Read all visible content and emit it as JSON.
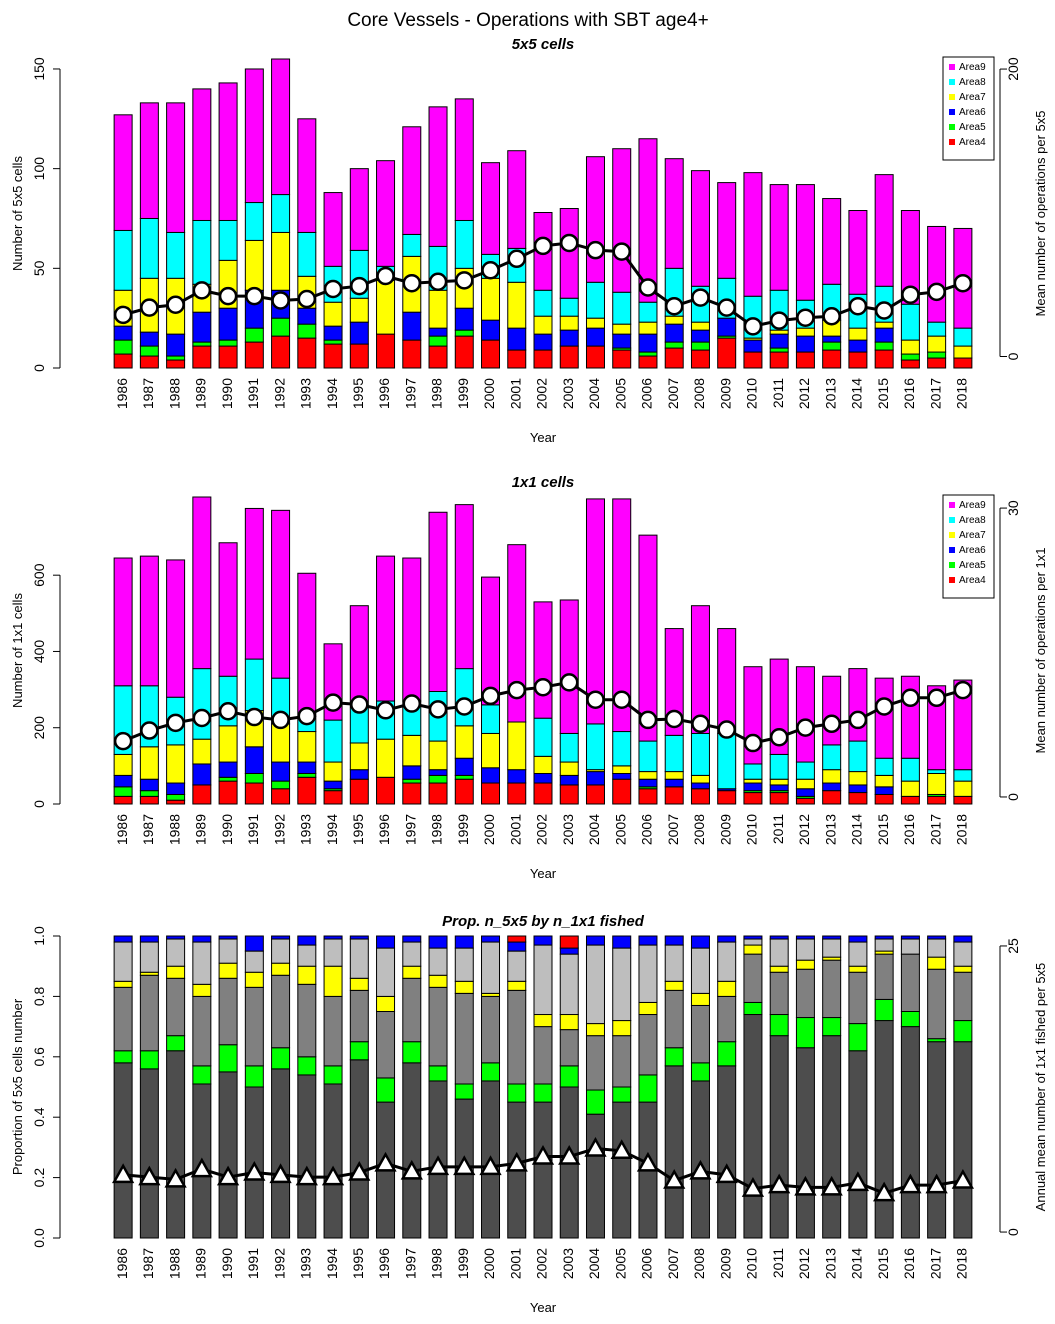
{
  "title": "Core Vessels - Operations with SBT age4+",
  "chart_data": [
    {
      "type": "bar",
      "stacked": true,
      "title": "5x5 cells",
      "xlabel": "Year",
      "ylabel": "Number of 5x5 cells",
      "y2label": "Mean number of operations per 5x5",
      "categories": [
        "1986",
        "1987",
        "1988",
        "1989",
        "1990",
        "1991",
        "1992",
        "1993",
        "1994",
        "1995",
        "1996",
        "1997",
        "1998",
        "1999",
        "2000",
        "2001",
        "2002",
        "2003",
        "2004",
        "2005",
        "2006",
        "2007",
        "2008",
        "2009",
        "2010",
        "2011",
        "2012",
        "2013",
        "2014",
        "2015",
        "2016",
        "2017",
        "2018"
      ],
      "ylim": [
        0,
        155
      ],
      "yticks": [
        0,
        50,
        100,
        150
      ],
      "y2lim": [
        -8,
        207
      ],
      "y2ticks": [
        0,
        200
      ],
      "legend": "top-right",
      "series": [
        {
          "name": "Area4",
          "color": "#ff0000",
          "values": [
            7,
            6,
            4,
            11,
            11,
            13,
            16,
            15,
            12,
            12,
            17,
            14,
            11,
            16,
            14,
            9,
            9,
            11,
            11,
            9,
            6,
            10,
            9,
            15,
            8,
            8,
            8,
            9,
            8,
            9,
            4,
            5,
            5
          ]
        },
        {
          "name": "Area5",
          "color": "#00ff00",
          "values": [
            7,
            5,
            2,
            2,
            3,
            7,
            9,
            7,
            2,
            0,
            0,
            0,
            5,
            3,
            0,
            0,
            0,
            0,
            0,
            1,
            2,
            3,
            4,
            1,
            0,
            2,
            0,
            4,
            0,
            4,
            3,
            3,
            0
          ]
        },
        {
          "name": "Area6",
          "color": "#0000ff",
          "values": [
            7,
            7,
            11,
            15,
            16,
            19,
            14,
            8,
            7,
            11,
            0,
            14,
            4,
            11,
            10,
            11,
            8,
            8,
            9,
            7,
            9,
            9,
            6,
            9,
            6,
            7,
            8,
            3,
            6,
            7,
            0,
            0,
            0
          ]
        },
        {
          "name": "Area7",
          "color": "#ffff00",
          "values": [
            18,
            27,
            28,
            14,
            24,
            25,
            29,
            16,
            12,
            12,
            27,
            28,
            19,
            20,
            21,
            23,
            9,
            7,
            5,
            5,
            6,
            4,
            4,
            0,
            1,
            2,
            4,
            8,
            6,
            3,
            7,
            8,
            6
          ]
        },
        {
          "name": "Area8",
          "color": "#00ffff",
          "values": [
            30,
            30,
            23,
            32,
            20,
            19,
            19,
            22,
            18,
            24,
            7,
            11,
            22,
            24,
            12,
            17,
            13,
            9,
            18,
            16,
            10,
            24,
            18,
            20,
            21,
            20,
            14,
            18,
            17,
            18,
            18,
            7,
            9
          ]
        },
        {
          "name": "Area9",
          "color": "#ff00ff",
          "values": [
            58,
            58,
            65,
            66,
            69,
            67,
            68,
            57,
            37,
            41,
            53,
            54,
            70,
            61,
            46,
            49,
            39,
            45,
            63,
            72,
            82,
            55,
            58,
            48,
            62,
            53,
            58,
            43,
            42,
            56,
            47,
            48,
            50
          ]
        },
        {
          "type": "line",
          "axis": "y2",
          "marker": "circle",
          "color": "#000000",
          "values": [
            29,
            34,
            36,
            46,
            42,
            42,
            39,
            40,
            47,
            49,
            56,
            51,
            52,
            53,
            60,
            68,
            77,
            79,
            74,
            73,
            48,
            35,
            41,
            34,
            21,
            25,
            27,
            28,
            35,
            32,
            43,
            45,
            51
          ]
        }
      ]
    },
    {
      "type": "bar",
      "stacked": true,
      "title": "1x1 cells",
      "xlabel": "Year",
      "ylabel": "Number of 1x1 cells",
      "y2label": "Mean number of operations per 1x1",
      "categories": [
        "1986",
        "1987",
        "1988",
        "1989",
        "1990",
        "1991",
        "1992",
        "1993",
        "1994",
        "1995",
        "1996",
        "1997",
        "1998",
        "1999",
        "2000",
        "2001",
        "2002",
        "2003",
        "2004",
        "2005",
        "2006",
        "2007",
        "2008",
        "2009",
        "2010",
        "2011",
        "2012",
        "2013",
        "2014",
        "2015",
        "2016",
        "2017",
        "2018"
      ],
      "ylim": [
        0,
        805
      ],
      "yticks": [
        0,
        200,
        400,
        600
      ],
      "y2lim": [
        -0.73,
        31.15
      ],
      "y2ticks": [
        0,
        30
      ],
      "legend": "top-right",
      "series": [
        {
          "name": "Area4",
          "color": "#ff0000",
          "values": [
            20,
            20,
            10,
            50,
            60,
            55,
            40,
            70,
            35,
            65,
            70,
            55,
            55,
            65,
            55,
            55,
            55,
            50,
            50,
            65,
            40,
            45,
            40,
            35,
            30,
            30,
            15,
            35,
            30,
            25,
            20,
            20,
            20
          ]
        },
        {
          "name": "Area5",
          "color": "#00ff00",
          "values": [
            25,
            15,
            15,
            0,
            10,
            25,
            20,
            10,
            5,
            0,
            0,
            10,
            20,
            10,
            0,
            0,
            0,
            0,
            0,
            0,
            5,
            0,
            0,
            0,
            5,
            5,
            5,
            0,
            0,
            0,
            0,
            5,
            0
          ]
        },
        {
          "name": "Area6",
          "color": "#0000ff",
          "values": [
            30,
            30,
            30,
            55,
            40,
            70,
            50,
            30,
            20,
            25,
            0,
            35,
            15,
            45,
            40,
            35,
            25,
            25,
            35,
            15,
            20,
            20,
            15,
            5,
            20,
            15,
            20,
            20,
            20,
            20,
            0,
            0,
            0
          ]
        },
        {
          "name": "Area7",
          "color": "#ffff00",
          "values": [
            55,
            85,
            100,
            65,
            95,
            95,
            100,
            80,
            50,
            70,
            100,
            80,
            75,
            85,
            90,
            125,
            45,
            35,
            5,
            20,
            20,
            20,
            20,
            0,
            10,
            15,
            25,
            35,
            35,
            30,
            40,
            55,
            40
          ]
        },
        {
          "name": "Area8",
          "color": "#00ffff",
          "values": [
            180,
            160,
            125,
            185,
            130,
            135,
            120,
            40,
            110,
            100,
            100,
            90,
            130,
            150,
            75,
            0,
            100,
            75,
            120,
            90,
            80,
            95,
            110,
            145,
            40,
            65,
            45,
            65,
            80,
            45,
            60,
            10,
            30
          ]
        },
        {
          "name": "Area9",
          "color": "#ff00ff",
          "values": [
            335,
            340,
            360,
            450,
            350,
            395,
            440,
            375,
            200,
            260,
            380,
            375,
            470,
            430,
            335,
            465,
            305,
            350,
            590,
            610,
            540,
            280,
            335,
            275,
            255,
            250,
            250,
            180,
            190,
            210,
            215,
            220,
            235
          ]
        },
        {
          "type": "line",
          "axis": "y2",
          "marker": "circle",
          "color": "#000000",
          "values": [
            5.8,
            6.9,
            7.7,
            8.2,
            8.9,
            8.3,
            8.0,
            8.4,
            9.8,
            9.6,
            9.0,
            9.7,
            9.1,
            9.4,
            10.5,
            11.1,
            11.4,
            11.9,
            10.1,
            10.1,
            8.0,
            8.1,
            7.6,
            7.0,
            5.6,
            6.2,
            7.2,
            7.6,
            8.0,
            9.4,
            10.3,
            10.3,
            11.1
          ]
        }
      ]
    },
    {
      "type": "bar",
      "stacked": true,
      "title": "Prop. n_5x5 by n_1x1 fished",
      "xlabel": "Year",
      "ylabel": "Proportion of 5x5 cells number",
      "y2label": "Annual mean number of 1x1 fished per 5x5",
      "categories": [
        "1986",
        "1987",
        "1988",
        "1989",
        "1990",
        "1991",
        "1992",
        "1993",
        "1994",
        "1995",
        "1996",
        "1997",
        "1998",
        "1999",
        "2000",
        "2001",
        "2002",
        "2003",
        "2004",
        "2005",
        "2006",
        "2007",
        "2008",
        "2009",
        "2010",
        "2011",
        "2012",
        "2013",
        "2014",
        "2015",
        "2016",
        "2017",
        "2018"
      ],
      "ylim": [
        0,
        1
      ],
      "yticks": [
        {
          "value": 0,
          "label": "0.0"
        },
        0.2,
        0.4,
        0.6,
        0.8,
        {
          "value": 1,
          "label": "1.0"
        }
      ],
      "y2lim": [
        -0.52,
        25.87
      ],
      "y2ticks": [
        0,
        25
      ],
      "series": [
        {
          "color": "#4d4d4d",
          "values": [
            0.58,
            0.56,
            0.62,
            0.51,
            0.55,
            0.5,
            0.56,
            0.54,
            0.51,
            0.59,
            0.45,
            0.58,
            0.52,
            0.46,
            0.52,
            0.45,
            0.45,
            0.5,
            0.41,
            0.45,
            0.45,
            0.57,
            0.52,
            0.57,
            0.74,
            0.67,
            0.63,
            0.67,
            0.62,
            0.72,
            0.7,
            0.65,
            0.65
          ]
        },
        {
          "color": "#00ff00",
          "values": [
            0.04,
            0.06,
            0.05,
            0.06,
            0.09,
            0.07,
            0.07,
            0.06,
            0.06,
            0.06,
            0.08,
            0.07,
            0.05,
            0.05,
            0.06,
            0.06,
            0.06,
            0.07,
            0.08,
            0.05,
            0.09,
            0.06,
            0.06,
            0.08,
            0.04,
            0.07,
            0.1,
            0.06,
            0.09,
            0.07,
            0.05,
            0.01,
            0.07
          ]
        },
        {
          "color": "#808080",
          "values": [
            0.21,
            0.25,
            0.19,
            0.23,
            0.22,
            0.26,
            0.24,
            0.24,
            0.23,
            0.17,
            0.22,
            0.21,
            0.26,
            0.3,
            0.22,
            0.31,
            0.19,
            0.12,
            0.18,
            0.17,
            0.2,
            0.19,
            0.19,
            0.15,
            0.16,
            0.14,
            0.16,
            0.19,
            0.17,
            0.15,
            0.19,
            0.23,
            0.16
          ]
        },
        {
          "color": "#ffff00",
          "values": [
            0.02,
            0.01,
            0.04,
            0.04,
            0.05,
            0.05,
            0.04,
            0.06,
            0.1,
            0.04,
            0.05,
            0.04,
            0.04,
            0.04,
            0.01,
            0.03,
            0.04,
            0.05,
            0.04,
            0.05,
            0.04,
            0.03,
            0.04,
            0.05,
            0.03,
            0.02,
            0.03,
            0.01,
            0.02,
            0.01,
            0,
            0.04,
            0.02
          ]
        },
        {
          "color": "#bebebe",
          "values": [
            0.13,
            0.1,
            0.09,
            0.14,
            0.08,
            0.07,
            0.08,
            0.07,
            0.09,
            0.13,
            0.16,
            0.08,
            0.09,
            0.11,
            0.17,
            0.1,
            0.23,
            0.2,
            0.26,
            0.24,
            0.19,
            0.12,
            0.15,
            0.13,
            0.02,
            0.09,
            0.07,
            0.06,
            0.08,
            0.04,
            0.05,
            0.06,
            0.08
          ]
        },
        {
          "color": "#0000ff",
          "values": [
            0.02,
            0.02,
            0.01,
            0.02,
            0.01,
            0.05,
            0.01,
            0.03,
            0.01,
            0.01,
            0.04,
            0.02,
            0.04,
            0.04,
            0.02,
            0.03,
            0.03,
            0.02,
            0.03,
            0.04,
            0.03,
            0.03,
            0.04,
            0.02,
            0.01,
            0.01,
            0.01,
            0.01,
            0.02,
            0.01,
            0.01,
            0.01,
            0.02
          ]
        },
        {
          "color": "#ff0000",
          "values": [
            0,
            0,
            0,
            0,
            0,
            0,
            0,
            0,
            0,
            0,
            0,
            0,
            0,
            0,
            0,
            0.02,
            0,
            0.04,
            0,
            0,
            0,
            0,
            0,
            0,
            0,
            0,
            0,
            0,
            0,
            0,
            0,
            0,
            0
          ]
        },
        {
          "type": "line",
          "axis": "y2",
          "marker": "triangle",
          "color": "#000000",
          "values": [
            5.0,
            4.8,
            4.6,
            5.5,
            4.8,
            5.2,
            5.0,
            4.8,
            4.8,
            5.2,
            6.0,
            5.3,
            5.7,
            5.7,
            5.7,
            6.0,
            6.6,
            6.6,
            7.3,
            7.1,
            6.0,
            4.5,
            5.3,
            5.0,
            3.8,
            4.1,
            3.9,
            3.9,
            4.3,
            3.4,
            4.1,
            4.1,
            4.5
          ]
        }
      ]
    }
  ]
}
